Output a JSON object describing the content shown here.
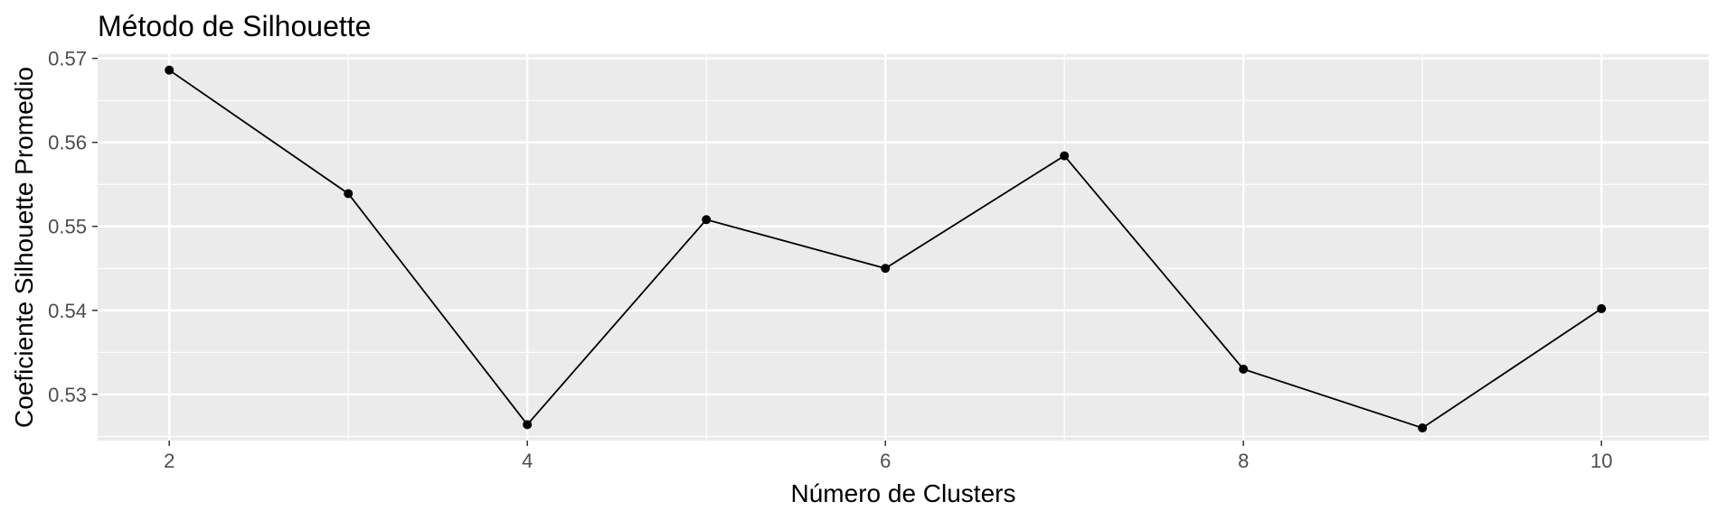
{
  "chart_data": {
    "type": "line",
    "title": "Método de Silhouette",
    "xlabel": "Número de Clusters",
    "ylabel": "Coeficiente Silhouette Promedio",
    "x": [
      2,
      3,
      4,
      5,
      6,
      7,
      8,
      9,
      10
    ],
    "series": [
      {
        "values": [
          0.5686,
          0.5539,
          0.5264,
          0.5508,
          0.545,
          0.5584,
          0.533,
          0.526,
          0.5402
        ]
      }
    ],
    "xlim": [
      1.6,
      10.6
    ],
    "ylim": [
      0.5245,
      0.5705
    ],
    "xticks": [
      2,
      4,
      6,
      8,
      10
    ],
    "yticks": [
      0.53,
      0.54,
      0.55,
      0.56,
      0.57
    ],
    "xtick_labels": [
      "2",
      "4",
      "6",
      "8",
      "10"
    ],
    "ytick_labels": [
      "0.53",
      "0.54",
      "0.55",
      "0.56",
      "0.57"
    ],
    "grid": true,
    "legend": "none",
    "colors": {
      "panel_background": "#ebebeb",
      "grid": "#ffffff",
      "line": "#000000",
      "point": "#000000",
      "tick_text": "#4d4d4d"
    }
  }
}
